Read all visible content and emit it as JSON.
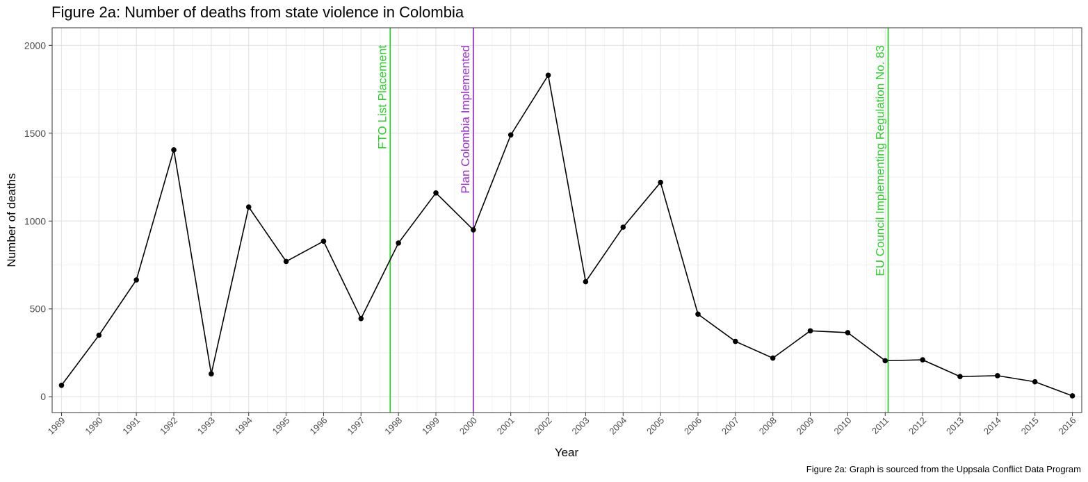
{
  "chart_data": {
    "type": "line",
    "title": "Figure 2a: Number of deaths from state violence in Colombia",
    "xlabel": "Year",
    "ylabel": "Number of deaths",
    "caption": "Figure 2a: Graph is sourced from the Uppsala Conflict Data Program",
    "ylim": [
      -90,
      2100
    ],
    "xlim": [
      1988.75,
      2016.25
    ],
    "yticks": [
      0,
      500,
      1000,
      1500,
      2000
    ],
    "grid": true,
    "legend": "none",
    "x": [
      1989,
      1990,
      1991,
      1992,
      1993,
      1994,
      1995,
      1996,
      1997,
      1998,
      1999,
      2000,
      2001,
      2002,
      2003,
      2004,
      2005,
      2006,
      2007,
      2008,
      2009,
      2010,
      2011,
      2012,
      2013,
      2014,
      2015,
      2016
    ],
    "series": [
      {
        "color": "#000000",
        "values": [
          65,
          350,
          665,
          1405,
          130,
          1080,
          770,
          885,
          445,
          875,
          1160,
          950,
          1490,
          1830,
          655,
          965,
          1220,
          470,
          315,
          220,
          375,
          365,
          205,
          210,
          115,
          120,
          85,
          5
        ]
      }
    ],
    "annotations": [
      {
        "label": "FTO List Placement",
        "x": 1997.78,
        "color": "#2ecc2e"
      },
      {
        "label": "Plan Colombia Implemented",
        "x": 2000.0,
        "color": "#9932cc"
      },
      {
        "label": "EU Council Implementing Regulation No. 83",
        "x": 2011.08,
        "color": "#2ecc2e"
      }
    ]
  }
}
